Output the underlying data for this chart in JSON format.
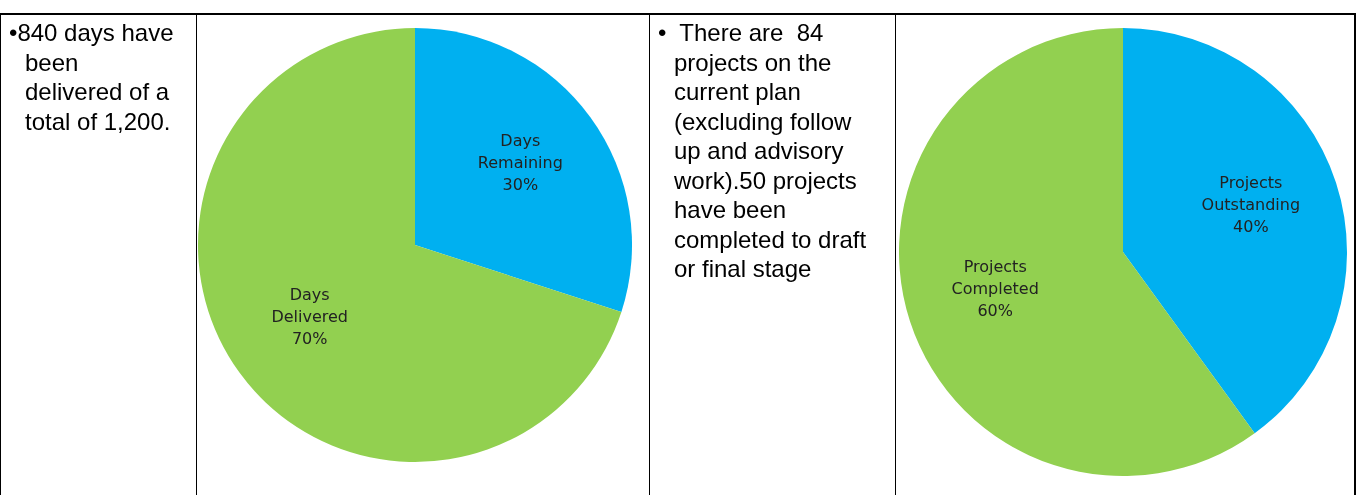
{
  "chart_data": [
    {
      "type": "other",
      "annotations": [
        "•840 days have been delivered of a total of 1,200."
      ]
    },
    {
      "type": "pie",
      "categories": [
        "Days Remaining",
        "Days Delivered"
      ],
      "values": [
        30,
        70
      ],
      "value_labels": [
        "30%",
        "70%"
      ],
      "colors": [
        "#00b0f0",
        "#92d050"
      ],
      "data_labels": true
    },
    {
      "type": "other",
      "annotations": [
        "•  There are  84 projects on the current plan (excluding follow up and advisory work).50 projects have been completed to draft or final stage"
      ]
    },
    {
      "type": "pie",
      "categories": [
        "Projects Outstanding",
        "Projects Completed"
      ],
      "values": [
        40,
        60
      ],
      "value_labels": [
        "40%",
        "60%"
      ],
      "colors": [
        "#00b0f0",
        "#92d050"
      ],
      "data_labels": true
    }
  ]
}
